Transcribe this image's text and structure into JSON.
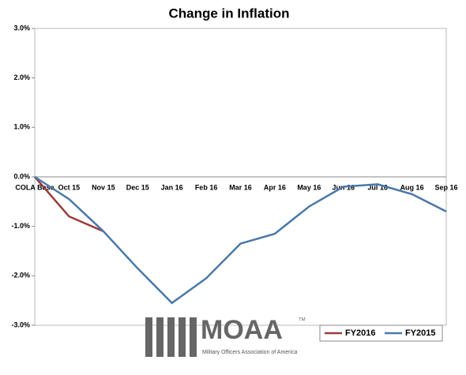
{
  "chart_data": {
    "type": "line",
    "title": "Change in Inflation",
    "categories": [
      "COLA Base",
      "Oct 15",
      "Nov 15",
      "Dec 15",
      "Jan 16",
      "Feb 16",
      "Mar 16",
      "Apr 16",
      "May 16",
      "Jun 16",
      "Jul 16",
      "Aug 16",
      "Sep 16"
    ],
    "series": [
      {
        "name": "FY2016",
        "color": "#9c3b3b",
        "values": [
          0,
          -0.8,
          -1.1,
          null,
          null,
          null,
          null,
          null,
          null,
          null,
          null,
          null,
          null
        ]
      },
      {
        "name": "FY2015",
        "color": "#4a78a8",
        "values": [
          0,
          -0.45,
          -1.1,
          -1.85,
          -2.55,
          -2.05,
          -1.35,
          -1.15,
          -0.6,
          -0.2,
          -0.15,
          -0.35,
          -0.7
        ]
      }
    ],
    "ylim": [
      -3,
      3
    ],
    "yticks": [
      {
        "value": -3,
        "label": "-3.0%"
      },
      {
        "value": -2,
        "label": "-2.0%"
      },
      {
        "value": -1,
        "label": "-1.0%"
      },
      {
        "value": 0,
        "label": "0.0%"
      },
      {
        "value": 1,
        "label": "1.0%"
      },
      {
        "value": 2,
        "label": "2.0%"
      },
      {
        "value": 3,
        "label": "3.0%"
      }
    ],
    "legend": "lower right",
    "logo": {
      "name": "MOAA",
      "tagline": "Military Officers Association of America",
      "mark": "TM"
    }
  }
}
